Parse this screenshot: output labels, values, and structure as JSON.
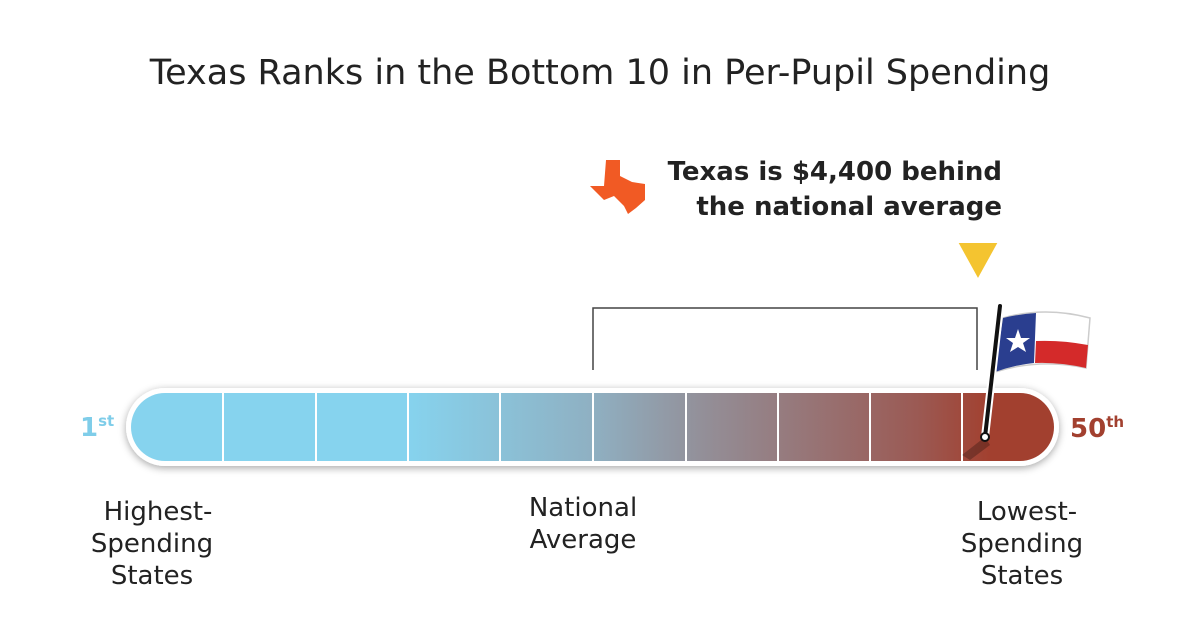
{
  "title": "Texas Ranks in the Bottom 10 in Per-Pupil Spending",
  "callout": {
    "lines": [
      "Texas is $4,400 behind",
      "the national average"
    ]
  },
  "rank_start": {
    "number": "1",
    "suffix": "st"
  },
  "rank_end": {
    "number": "50",
    "suffix": "th"
  },
  "labels": {
    "highest": [
      "Highest-",
      "Spending",
      "States"
    ],
    "average": [
      "National",
      "Average"
    ],
    "lowest": [
      "Lowest-",
      "Spending",
      "States"
    ]
  }
}
